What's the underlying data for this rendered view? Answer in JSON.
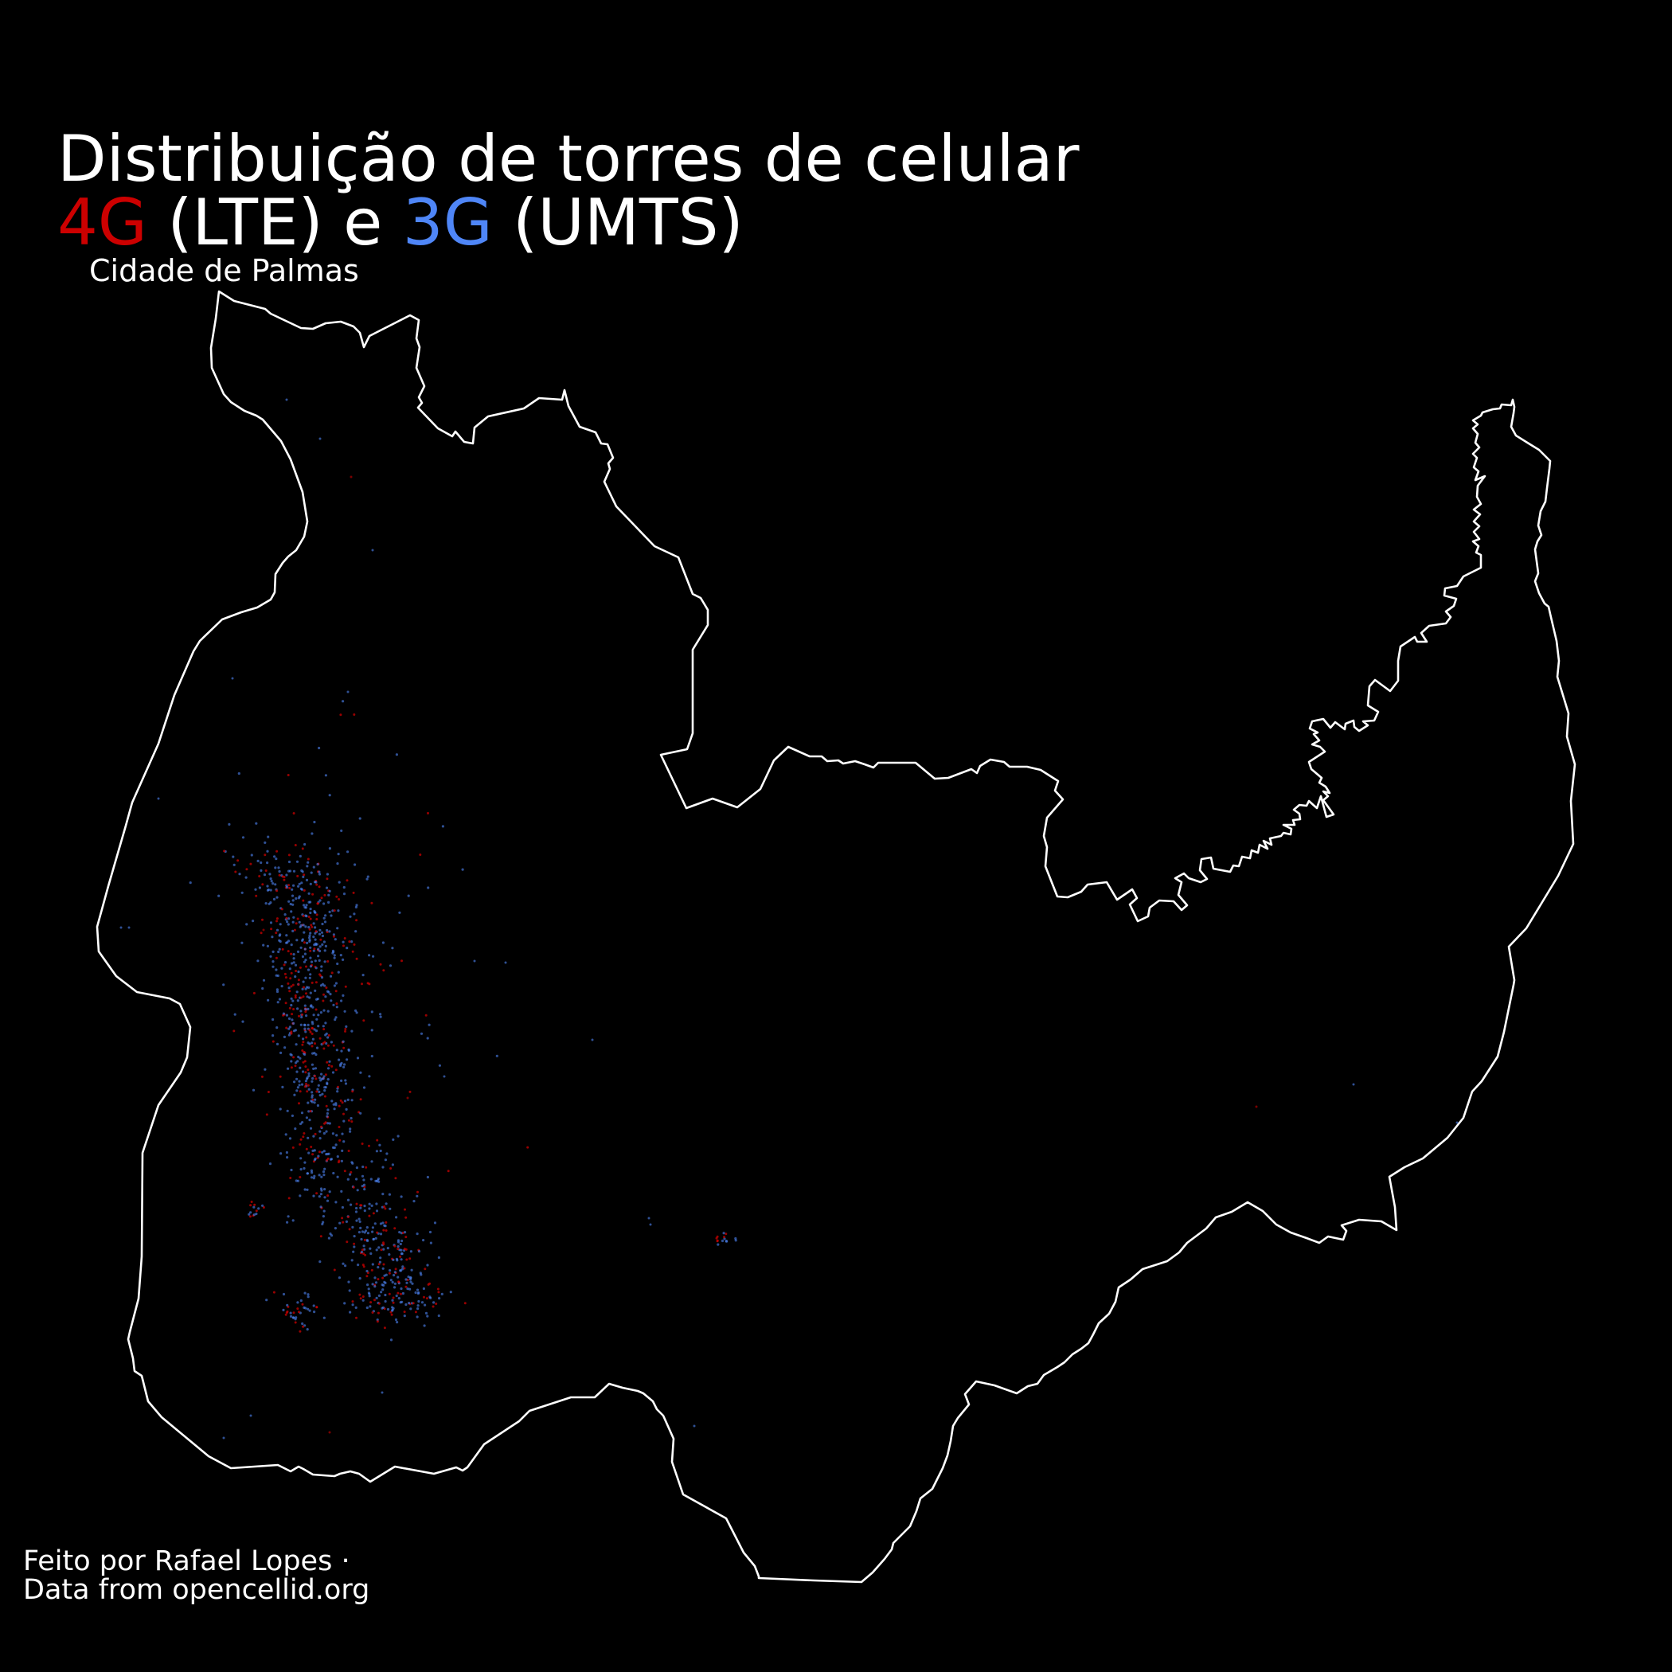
{
  "title": {
    "line1": "Distribuição de torres de celular",
    "lte_label": "4G",
    "lte_suffix": " (LTE) e ",
    "umts_label": "3G",
    "umts_suffix": " (UMTS)"
  },
  "subtitle": "Cidade de Palmas",
  "credits": {
    "line1": "Feito por Rafael Lopes ·",
    "line2": "Data from opencellid.org"
  },
  "colors": {
    "background": "#000000",
    "boundary": "#ffffff",
    "lte": "#cc0000",
    "umts": "#4f86f7"
  },
  "map": {
    "type": "dot-density map of cell towers inside municipal boundary",
    "series": [
      {
        "technology": "LTE",
        "color": "#cc0000"
      },
      {
        "technology": "UMTS",
        "color": "#4f86f7"
      }
    ]
  }
}
